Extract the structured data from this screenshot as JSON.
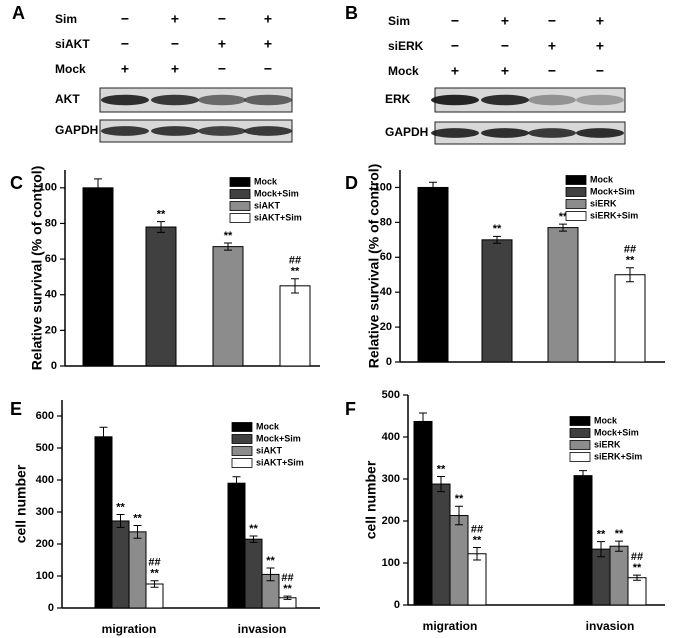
{
  "blots": [
    {
      "letter": "A",
      "rows": [
        {
          "label": "Sim",
          "signs": [
            "−",
            "+",
            "−",
            "+"
          ]
        },
        {
          "label": "siAKT",
          "signs": [
            "−",
            "−",
            "+",
            "+"
          ]
        },
        {
          "label": "Mock",
          "signs": [
            "+",
            "+",
            "−",
            "−"
          ]
        }
      ],
      "bands": [
        "AKT",
        "GAPDH"
      ]
    },
    {
      "letter": "B",
      "rows": [
        {
          "label": "Sim",
          "signs": [
            "−",
            "+",
            "−",
            "+"
          ]
        },
        {
          "label": "siERK",
          "signs": [
            "−",
            "−",
            "+",
            "+"
          ]
        },
        {
          "label": "Mock",
          "signs": [
            "+",
            "+",
            "−",
            "−"
          ]
        }
      ],
      "bands": [
        "ERK",
        "GAPDH"
      ]
    }
  ],
  "chart_data": [
    {
      "type": "bar",
      "letter": "C",
      "y_label": "Relative survival (% of control)",
      "categories": [
        null
      ],
      "ylim": [
        0,
        110
      ],
      "yticks": [
        0,
        20,
        40,
        60,
        80,
        100
      ],
      "series": [
        {
          "name": "Mock",
          "color": "#000000",
          "values": [
            100
          ],
          "errors": [
            5
          ],
          "significance": [
            []
          ]
        },
        {
          "name": "Mock+Sim",
          "color": "#404040",
          "values": [
            78
          ],
          "errors": [
            3
          ],
          "significance": [
            [
              "**"
            ]
          ]
        },
        {
          "name": "siAKT",
          "color": "#8c8c8c",
          "values": [
            67
          ],
          "errors": [
            2
          ],
          "significance": [
            [
              "**"
            ]
          ]
        },
        {
          "name": "siAKT+Sim",
          "color": "#ffffff",
          "values": [
            45
          ],
          "errors": [
            4
          ],
          "significance": [
            [
              "##",
              "**"
            ]
          ]
        }
      ]
    },
    {
      "type": "bar",
      "letter": "D",
      "y_label": "Relative survival (% of control)",
      "categories": [
        null
      ],
      "ylim": [
        0,
        110
      ],
      "yticks": [
        0,
        20,
        40,
        60,
        80,
        100
      ],
      "series": [
        {
          "name": "Mock",
          "color": "#000000",
          "values": [
            100
          ],
          "errors": [
            3
          ],
          "significance": [
            []
          ]
        },
        {
          "name": "Mock+Sim",
          "color": "#404040",
          "values": [
            70
          ],
          "errors": [
            2
          ],
          "significance": [
            [
              "**"
            ]
          ]
        },
        {
          "name": "siERK",
          "color": "#8c8c8c",
          "values": [
            77
          ],
          "errors": [
            2
          ],
          "significance": [
            [
              "**"
            ]
          ]
        },
        {
          "name": "siERK+Sim",
          "color": "#ffffff",
          "values": [
            50
          ],
          "errors": [
            4
          ],
          "significance": [
            [
              "##",
              "**"
            ]
          ]
        }
      ]
    },
    {
      "type": "bar",
      "letter": "E",
      "y_label": "cell number",
      "categories": [
        "migration",
        "invasion"
      ],
      "ylim": [
        0,
        650
      ],
      "yticks": [
        0,
        100,
        200,
        300,
        400,
        500,
        600
      ],
      "series": [
        {
          "name": "Mock",
          "color": "#000000",
          "values": [
            535,
            390
          ],
          "errors": [
            30,
            20
          ],
          "significance": [
            [],
            []
          ]
        },
        {
          "name": "Mock+Sim",
          "color": "#404040",
          "values": [
            272,
            215
          ],
          "errors": [
            20,
            10
          ],
          "significance": [
            [
              "**"
            ],
            [
              "**"
            ]
          ]
        },
        {
          "name": "siAKT",
          "color": "#8c8c8c",
          "values": [
            238,
            105
          ],
          "errors": [
            20,
            20
          ],
          "significance": [
            [
              "**"
            ],
            [
              "**"
            ]
          ]
        },
        {
          "name": "siAKT+Sim",
          "color": "#ffffff",
          "values": [
            75,
            32
          ],
          "errors": [
            10,
            5
          ],
          "significance": [
            [
              "##",
              "**"
            ],
            [
              "##",
              "**"
            ]
          ]
        }
      ]
    },
    {
      "type": "bar",
      "letter": "F",
      "y_label": "cell number",
      "categories": [
        "migration",
        "invasion"
      ],
      "ylim": [
        0,
        500
      ],
      "yticks": [
        0,
        100,
        200,
        300,
        400,
        500
      ],
      "series": [
        {
          "name": "Mock",
          "color": "#000000",
          "values": [
            437,
            308
          ],
          "errors": [
            20,
            12
          ],
          "significance": [
            [],
            []
          ]
        },
        {
          "name": "Mock+Sim",
          "color": "#404040",
          "values": [
            288,
            133
          ],
          "errors": [
            18,
            18
          ],
          "significance": [
            [
              "**"
            ],
            [
              "**"
            ]
          ]
        },
        {
          "name": "siERK",
          "color": "#8c8c8c",
          "values": [
            213,
            140
          ],
          "errors": [
            22,
            12
          ],
          "significance": [
            [
              "**"
            ],
            [
              "**"
            ]
          ]
        },
        {
          "name": "siERK+Sim",
          "color": "#ffffff",
          "values": [
            122,
            65
          ],
          "errors": [
            15,
            6
          ],
          "significance": [
            [
              "##",
              "**"
            ],
            [
              "##",
              "**"
            ]
          ]
        }
      ]
    }
  ]
}
